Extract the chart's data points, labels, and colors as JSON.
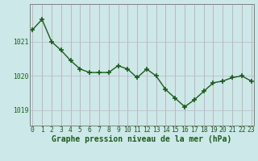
{
  "x": [
    0,
    1,
    2,
    3,
    4,
    5,
    6,
    7,
    8,
    9,
    10,
    11,
    12,
    13,
    14,
    15,
    16,
    17,
    18,
    19,
    20,
    21,
    22,
    23
  ],
  "y": [
    1021.35,
    1021.65,
    1021.0,
    1020.75,
    1020.45,
    1020.2,
    1020.1,
    1020.1,
    1020.1,
    1020.3,
    1020.2,
    1019.95,
    1020.2,
    1020.0,
    1019.6,
    1019.35,
    1019.1,
    1019.3,
    1019.55,
    1019.8,
    1019.85,
    1019.95,
    1020.0,
    1019.85
  ],
  "line_color": "#1a5c1a",
  "marker": "+",
  "markersize": 4.0,
  "markeredgewidth": 1.2,
  "bg_color": "#cce8e8",
  "grid_color_vert": "#c0a0a8",
  "grid_color_horiz": "#b8b8c8",
  "ylabel_ticks": [
    1019,
    1020,
    1021
  ],
  "xlabel_ticks": [
    0,
    1,
    2,
    3,
    4,
    5,
    6,
    7,
    8,
    9,
    10,
    11,
    12,
    13,
    14,
    15,
    16,
    17,
    18,
    19,
    20,
    21,
    22,
    23
  ],
  "ylim": [
    1018.55,
    1022.1
  ],
  "xlim": [
    -0.3,
    23.3
  ],
  "title": "Graphe pression niveau de la mer (hPa)",
  "title_color": "#1a5c1a",
  "title_fontsize": 7.0,
  "tick_fontsize": 5.8,
  "tick_color": "#1a5c1a",
  "border_color": "#808080",
  "linewidth": 1.0
}
